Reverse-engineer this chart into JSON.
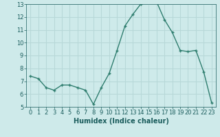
{
  "x": [
    0,
    1,
    2,
    3,
    4,
    5,
    6,
    7,
    8,
    9,
    10,
    11,
    12,
    13,
    14,
    15,
    16,
    17,
    18,
    19,
    20,
    21,
    22,
    23
  ],
  "y": [
    7.4,
    7.2,
    6.5,
    6.3,
    6.7,
    6.7,
    6.5,
    6.3,
    5.2,
    6.5,
    7.6,
    9.4,
    11.3,
    12.2,
    13.0,
    13.2,
    13.2,
    11.8,
    10.8,
    9.4,
    9.3,
    9.4,
    7.7,
    5.3
  ],
  "xlabel": "Humidex (Indice chaleur)",
  "ylim": [
    5,
    13
  ],
  "yticks": [
    5,
    6,
    7,
    8,
    9,
    10,
    11,
    12,
    13
  ],
  "xticks": [
    0,
    1,
    2,
    3,
    4,
    5,
    6,
    7,
    8,
    9,
    10,
    11,
    12,
    13,
    14,
    15,
    16,
    17,
    18,
    19,
    20,
    21,
    22,
    23
  ],
  "line_color": "#2e7d6e",
  "marker_color": "#2e7d6e",
  "bg_color": "#ceeaea",
  "grid_color": "#b8d8d8",
  "font_color": "#1a5c5c",
  "xlabel_fontsize": 7,
  "tick_fontsize": 6,
  "line_width": 1.0,
  "marker_size": 3.5
}
